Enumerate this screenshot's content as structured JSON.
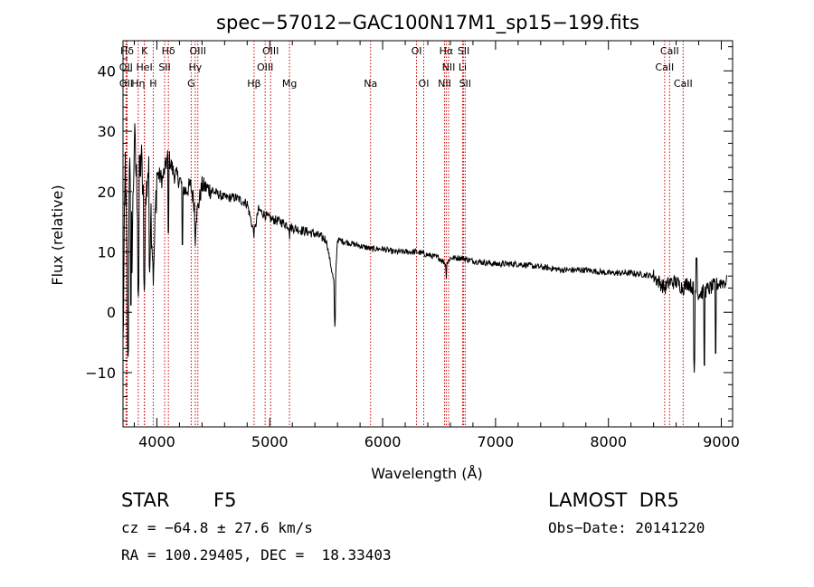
{
  "chart_data": {
    "type": "line",
    "title": "spec−57012−GAC100N17M1_sp15−199.fits",
    "xlabel": "Wavelength (Å)",
    "ylabel": "Flux (relative)",
    "xlim": [
      3700,
      9100
    ],
    "ylim": [
      -19,
      45
    ],
    "xticks": [
      4000,
      5000,
      6000,
      7000,
      8000,
      9000
    ],
    "yticks": [
      -10,
      0,
      10,
      20,
      30,
      40
    ],
    "ytick_labels": [
      "−10",
      "0",
      "10",
      "20",
      "30",
      "40"
    ],
    "grid": false,
    "spectrum_anchors": [
      [
        3700,
        -6
      ],
      [
        3720,
        25
      ],
      [
        3740,
        3
      ],
      [
        3760,
        28
      ],
      [
        3780,
        10
      ],
      [
        3800,
        29
      ],
      [
        3830,
        18
      ],
      [
        3860,
        26
      ],
      [
        3890,
        14
      ],
      [
        3920,
        24
      ],
      [
        3950,
        16
      ],
      [
        3970,
        6
      ],
      [
        4000,
        23
      ],
      [
        4050,
        22
      ],
      [
        4100,
        26
      ],
      [
        4150,
        23
      ],
      [
        4200,
        22
      ],
      [
        4250,
        20
      ],
      [
        4300,
        21
      ],
      [
        4350,
        16
      ],
      [
        4400,
        21
      ],
      [
        4500,
        20
      ],
      [
        4600,
        19
      ],
      [
        4700,
        19
      ],
      [
        4800,
        18
      ],
      [
        4861,
        13
      ],
      [
        4900,
        17
      ],
      [
        5000,
        15.5
      ],
      [
        5100,
        15
      ],
      [
        5200,
        14
      ],
      [
        5300,
        13.5
      ],
      [
        5400,
        13
      ],
      [
        5500,
        12
      ],
      [
        5577,
        4
      ],
      [
        5600,
        12
      ],
      [
        5700,
        11.5
      ],
      [
        5800,
        11
      ],
      [
        5900,
        10.5
      ],
      [
        6000,
        10.5
      ],
      [
        6100,
        10
      ],
      [
        6200,
        10
      ],
      [
        6300,
        10
      ],
      [
        6400,
        9.5
      ],
      [
        6500,
        9
      ],
      [
        6563,
        8
      ],
      [
        6600,
        9
      ],
      [
        6700,
        9
      ],
      [
        6800,
        8.5
      ],
      [
        7000,
        8
      ],
      [
        7200,
        8
      ],
      [
        7400,
        7.5
      ],
      [
        7600,
        7
      ],
      [
        7800,
        7
      ],
      [
        8000,
        6.5
      ],
      [
        8200,
        6.5
      ],
      [
        8400,
        6
      ],
      [
        8500,
        4
      ],
      [
        8540,
        5
      ],
      [
        8600,
        5
      ],
      [
        8662,
        4
      ],
      [
        8700,
        5
      ],
      [
        8800,
        3
      ],
      [
        8900,
        4
      ],
      [
        9000,
        5
      ],
      [
        9100,
        5
      ]
    ],
    "spectrum_dips": [
      [
        3745,
        -8
      ],
      [
        3770,
        0
      ],
      [
        3835,
        2
      ],
      [
        3889,
        3
      ],
      [
        3935,
        6
      ],
      [
        3970,
        6
      ],
      [
        4102,
        12
      ],
      [
        4226,
        10
      ],
      [
        4340,
        11
      ],
      [
        4861,
        13
      ],
      [
        5175,
        11.5
      ],
      [
        5577,
        -3
      ],
      [
        6563,
        5
      ],
      [
        8760,
        -10
      ],
      [
        8850,
        -10
      ],
      [
        8950,
        -8
      ]
    ],
    "spectrum_spikes": [
      [
        8780,
        9
      ]
    ],
    "lines": [
      {
        "label": "Hδ",
        "x": 3736,
        "row": 0
      },
      {
        "label": "K",
        "x": 3890,
        "row": 0
      },
      {
        "label": "Hδ",
        "x": 4102,
        "row": 0
      },
      {
        "label": "OIII",
        "x": 4363,
        "row": 0
      },
      {
        "label": "OIII",
        "x": 5007,
        "row": 0
      },
      {
        "label": "OI",
        "x": 6300,
        "row": 0
      },
      {
        "label": "Hα",
        "x": 6563,
        "row": 0
      },
      {
        "label": "SII",
        "x": 6717,
        "row": 0
      },
      {
        "label": "CaII",
        "x": 8542,
        "row": 0
      },
      {
        "label": "OII",
        "x": 3727,
        "row": 1
      },
      {
        "label": "HeI",
        "x": 3889,
        "row": 1
      },
      {
        "label": "SII",
        "x": 4069,
        "row": 1
      },
      {
        "label": "Hγ",
        "x": 4340,
        "row": 1
      },
      {
        "label": "OIII",
        "x": 4959,
        "row": 1
      },
      {
        "label": "NII",
        "x": 6584,
        "row": 1
      },
      {
        "label": "Li",
        "x": 6708,
        "row": 1
      },
      {
        "label": "CaII",
        "x": 8498,
        "row": 1
      },
      {
        "label": "OII",
        "x": 3728,
        "row": 2
      },
      {
        "label": "Hη",
        "x": 3835,
        "row": 2
      },
      {
        "label": "H",
        "x": 3968,
        "row": 2
      },
      {
        "label": "G",
        "x": 4304,
        "row": 2
      },
      {
        "label": "Hβ",
        "x": 4861,
        "row": 2
      },
      {
        "label": "Mg",
        "x": 5175,
        "row": 2
      },
      {
        "label": "Na",
        "x": 5893,
        "row": 2
      },
      {
        "label": "OI",
        "x": 6364,
        "row": 2
      },
      {
        "label": "NII",
        "x": 6548,
        "row": 2
      },
      {
        "label": "SII",
        "x": 6731,
        "row": 2
      },
      {
        "label": "CaII",
        "x": 8662,
        "row": 2
      }
    ],
    "line_color": "#cc0000",
    "spectrum_color": "#000000"
  },
  "footer": {
    "object_class": "STAR",
    "subclass": "F5",
    "survey": "LAMOST  DR5",
    "velocity": "cz = −64.8 ± 27.6 km/s",
    "obs_date": "Obs−Date: 20141220",
    "coords": "RA = 100.29405, DEC =  18.33403"
  }
}
